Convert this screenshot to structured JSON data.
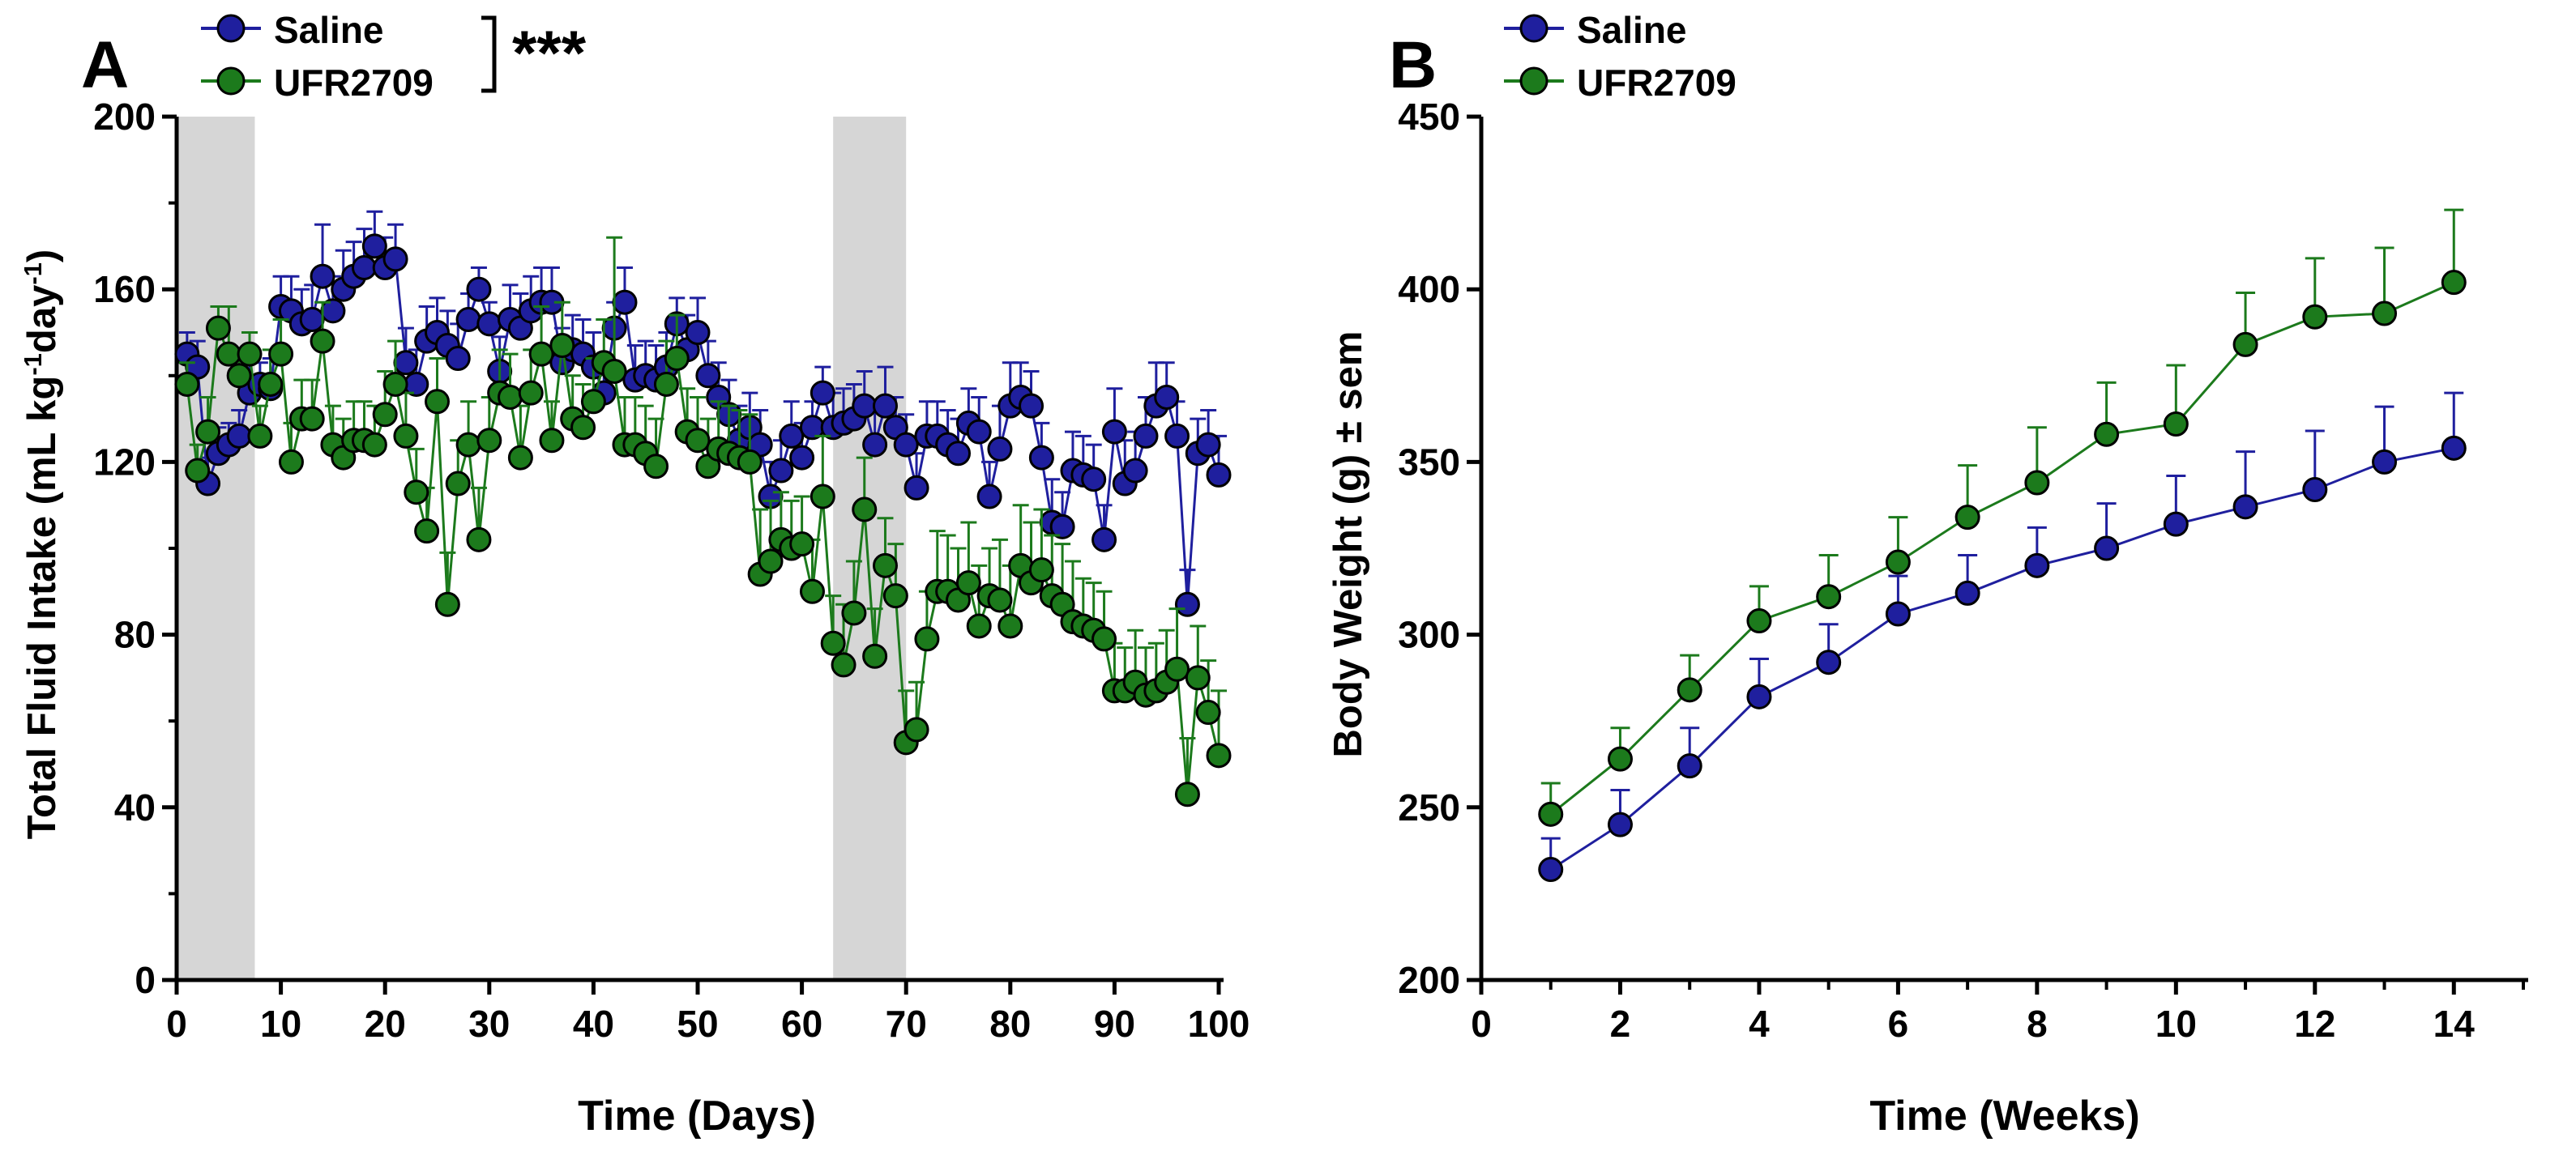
{
  "figure": {
    "colors": {
      "saline": "#1f1f9e",
      "ufr": "#1c7a1c",
      "shade": "#d6d6d6",
      "marker_edge": "#000000"
    }
  },
  "chart_data": [
    {
      "panel": "A",
      "type": "line",
      "title": "",
      "xlabel": "Time (Days)",
      "ylabel": "Total Fluid Intake (mL kg",
      "ylabel_sup1": "-1",
      "ylabel_mid": "day",
      "ylabel_sup2": "-1",
      "ylabel_end": ")",
      "xlim": [
        0,
        100
      ],
      "ylim": [
        0,
        200
      ],
      "xticks": [
        "0",
        "10",
        "20",
        "30",
        "40",
        "50",
        "60",
        "70",
        "80",
        "90",
        "100"
      ],
      "yticks": [
        "0",
        "40",
        "80",
        "120",
        "160",
        "200"
      ],
      "shaded_regions_days": [
        [
          0,
          7.5
        ],
        [
          63,
          70
        ]
      ],
      "significance": "***",
      "legend": [
        "Saline",
        "UFR2709"
      ],
      "legend_placement": "top-left",
      "x": [
        1,
        2,
        3,
        4,
        5,
        6,
        7,
        8,
        9,
        10,
        11,
        12,
        13,
        14,
        15,
        16,
        17,
        18,
        19,
        20,
        21,
        22,
        23,
        24,
        25,
        26,
        27,
        28,
        29,
        30,
        31,
        32,
        33,
        34,
        35,
        36,
        37,
        38,
        39,
        40,
        41,
        42,
        43,
        44,
        45,
        46,
        47,
        48,
        49,
        50,
        51,
        52,
        53,
        54,
        55,
        56,
        57,
        58,
        59,
        60,
        61,
        62,
        63,
        64,
        65,
        66,
        67,
        68,
        69,
        70,
        71,
        72,
        73,
        74,
        75,
        76,
        77,
        78,
        79,
        80,
        81,
        82,
        83,
        84,
        85,
        86,
        87,
        88,
        89,
        90,
        91,
        92,
        93,
        94,
        95,
        96,
        97,
        98,
        99,
        100
      ],
      "series": [
        {
          "name": "Saline",
          "values": [
            145,
            142,
            115,
            122,
            124,
            126,
            136,
            138,
            137,
            156,
            155,
            152,
            153,
            163,
            155,
            160,
            163,
            165,
            170,
            165,
            167,
            143,
            138,
            148,
            150,
            147,
            144,
            153,
            160,
            152,
            141,
            153,
            151,
            155,
            157,
            157,
            143,
            146,
            145,
            142,
            136,
            151,
            157,
            139,
            140,
            139,
            142,
            152,
            146,
            150,
            140,
            135,
            131,
            125,
            128,
            124,
            112,
            118,
            126,
            121,
            128,
            136,
            128,
            129,
            130,
            133,
            124,
            133,
            128,
            124,
            114,
            126,
            126,
            124,
            122,
            129,
            127,
            112,
            123,
            133,
            135,
            133,
            121,
            106,
            105,
            118,
            117,
            116,
            102,
            127,
            115,
            118,
            126,
            133,
            135,
            126,
            87,
            122,
            124,
            117
          ],
          "errors": [
            5,
            6,
            6,
            6,
            5,
            6,
            7,
            5,
            7,
            7,
            8,
            8,
            8,
            12,
            8,
            9,
            8,
            9,
            8,
            7,
            8,
            8,
            8,
            8,
            8,
            8,
            8,
            6,
            5,
            5,
            8,
            8,
            8,
            8,
            8,
            8,
            8,
            8,
            8,
            8,
            8,
            6,
            8,
            8,
            8,
            8,
            8,
            6,
            8,
            8,
            8,
            8,
            8,
            8,
            8,
            8,
            8,
            7,
            8,
            8,
            6,
            6,
            8,
            8,
            8,
            8,
            8,
            9,
            7,
            7,
            8,
            8,
            8,
            8,
            8,
            8,
            8,
            8,
            10,
            10,
            8,
            8,
            8,
            10,
            8,
            9,
            9,
            8,
            8,
            10,
            10,
            9,
            9,
            10,
            8,
            8,
            8,
            8,
            8,
            9
          ]
        },
        {
          "name": "UFR2709",
          "values": [
            138,
            118,
            127,
            151,
            145,
            140,
            145,
            126,
            138,
            145,
            120,
            130,
            130,
            148,
            124,
            121,
            125,
            125,
            124,
            131,
            138,
            126,
            113,
            104,
            134,
            87,
            115,
            124,
            102,
            125,
            136,
            135,
            121,
            136,
            145,
            125,
            147,
            130,
            128,
            134,
            143,
            141,
            124,
            124,
            122,
            119,
            138,
            144,
            127,
            125,
            119,
            123,
            122,
            121,
            120,
            94,
            97,
            102,
            100,
            101,
            90,
            112,
            78,
            73,
            85,
            109,
            75,
            96,
            89,
            55,
            58,
            79,
            90,
            90,
            88,
            92,
            82,
            89,
            88,
            82,
            96,
            92,
            95,
            89,
            87,
            83,
            82,
            81,
            79,
            67,
            67,
            69,
            66,
            67,
            69,
            72,
            43,
            70,
            62,
            52
          ],
          "errors": [
            5,
            6,
            8,
            5,
            11,
            6,
            5,
            7,
            8,
            8,
            9,
            9,
            9,
            9,
            9,
            9,
            9,
            9,
            9,
            10,
            10,
            10,
            10,
            10,
            10,
            12,
            10,
            10,
            12,
            10,
            10,
            10,
            12,
            10,
            11,
            9,
            10,
            10,
            10,
            10,
            10,
            31,
            11,
            11,
            11,
            11,
            10,
            10,
            10,
            10,
            11,
            11,
            11,
            11,
            11,
            15,
            14,
            11,
            11,
            11,
            12,
            14,
            11,
            14,
            12,
            12,
            11,
            11,
            12,
            12,
            11,
            11,
            14,
            13,
            12,
            14,
            14,
            11,
            14,
            14,
            14,
            14,
            14,
            14,
            14,
            14,
            11,
            11,
            11,
            11,
            10,
            12,
            11,
            11,
            12,
            14,
            13,
            12,
            12,
            15
          ]
        }
      ]
    },
    {
      "panel": "B",
      "type": "line",
      "title": "",
      "xlabel": "Time (Weeks)",
      "ylabel": "Body Weight (g) ± sem",
      "xlim": [
        0,
        15
      ],
      "ylim": [
        200,
        450
      ],
      "xticks": [
        "0",
        "2",
        "4",
        "6",
        "8",
        "10",
        "12",
        "14"
      ],
      "yticks": [
        "200",
        "250",
        "300",
        "350",
        "400",
        "450"
      ],
      "legend": [
        "Saline",
        "UFR2709"
      ],
      "legend_placement": "top-left",
      "x": [
        1,
        2,
        3,
        4,
        5,
        6,
        7,
        8,
        9,
        10,
        11,
        12,
        13,
        14
      ],
      "series": [
        {
          "name": "Saline",
          "values": [
            232,
            245,
            262,
            282,
            292,
            306,
            312,
            320,
            325,
            332,
            337,
            342,
            350,
            354
          ],
          "errors": [
            9,
            10,
            11,
            11,
            11,
            11,
            11,
            11,
            13,
            14,
            16,
            17,
            16,
            16
          ]
        },
        {
          "name": "UFR2709",
          "values": [
            248,
            264,
            284,
            304,
            311,
            321,
            334,
            344,
            358,
            361,
            384,
            392,
            393,
            402
          ],
          "errors": [
            9,
            9,
            10,
            10,
            12,
            13,
            15,
            16,
            15,
            17,
            15,
            17,
            19,
            21
          ]
        }
      ]
    }
  ]
}
